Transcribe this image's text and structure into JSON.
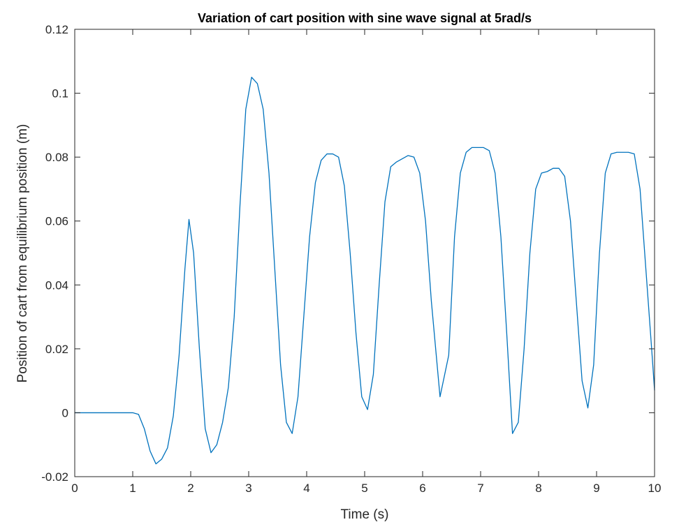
{
  "chart_data": {
    "type": "line",
    "title": "Variation of cart position with sine wave signal at 5rad/s",
    "xlabel": "Time (s)",
    "ylabel": "Position of cart from equilibrium position (m)",
    "xlim": [
      0,
      10
    ],
    "ylim": [
      -0.02,
      0.12
    ],
    "xticks": [
      0,
      1,
      2,
      3,
      4,
      5,
      6,
      7,
      8,
      9,
      10
    ],
    "yticks": [
      -0.02,
      0,
      0.02,
      0.04,
      0.06,
      0.08,
      0.1,
      0.12
    ],
    "xtick_labels": [
      "0",
      "1",
      "2",
      "3",
      "4",
      "5",
      "6",
      "7",
      "8",
      "9",
      "10"
    ],
    "ytick_labels": [
      "-0.02",
      "0",
      "0.02",
      "0.04",
      "0.06",
      "0.08",
      "0.1",
      "0.12"
    ],
    "grid": false,
    "box": true,
    "series": [
      {
        "color": "#0072bd",
        "x": [
          0,
          1.0,
          1.1,
          1.2,
          1.3,
          1.4,
          1.5,
          1.6,
          1.7,
          1.8,
          1.9,
          1.97,
          2.05,
          2.15,
          2.25,
          2.35,
          2.45,
          2.55,
          2.65,
          2.75,
          2.85,
          2.95,
          3.05,
          3.15,
          3.25,
          3.35,
          3.45,
          3.55,
          3.65,
          3.75,
          3.85,
          3.95,
          4.05,
          4.15,
          4.25,
          4.35,
          4.45,
          4.55,
          4.65,
          4.75,
          4.85,
          4.95,
          5.05,
          5.15,
          5.25,
          5.35,
          5.45,
          5.55,
          5.65,
          5.75,
          5.85,
          5.95,
          6.05,
          6.15,
          6.3,
          6.45,
          6.55,
          6.65,
          6.75,
          6.85,
          6.95,
          7.05,
          7.15,
          7.25,
          7.35,
          7.45,
          7.55,
          7.65,
          7.75,
          7.85,
          7.95,
          8.05,
          8.15,
          8.25,
          8.35,
          8.45,
          8.55,
          8.65,
          8.75,
          8.85,
          8.95,
          9.05,
          9.15,
          9.25,
          9.35,
          9.45,
          9.55,
          9.65,
          9.75,
          9.85,
          9.95,
          10.0
        ],
        "y": [
          0,
          0,
          -0.0005,
          -0.005,
          -0.012,
          -0.016,
          -0.0145,
          -0.011,
          -0.001,
          0.018,
          0.045,
          0.0605,
          0.05,
          0.02,
          -0.005,
          -0.0125,
          -0.01,
          -0.003,
          0.008,
          0.03,
          0.065,
          0.095,
          0.105,
          0.103,
          0.095,
          0.075,
          0.045,
          0.015,
          -0.003,
          -0.0065,
          0.005,
          0.03,
          0.055,
          0.072,
          0.079,
          0.081,
          0.081,
          0.08,
          0.071,
          0.05,
          0.025,
          0.005,
          0.001,
          0.012,
          0.04,
          0.066,
          0.077,
          0.0785,
          0.0795,
          0.0805,
          0.08,
          0.075,
          0.06,
          0.035,
          0.005,
          0.018,
          0.055,
          0.075,
          0.0815,
          0.083,
          0.083,
          0.083,
          0.082,
          0.075,
          0.055,
          0.025,
          -0.0065,
          -0.003,
          0.02,
          0.05,
          0.07,
          0.075,
          0.0755,
          0.0765,
          0.0765,
          0.074,
          0.06,
          0.035,
          0.01,
          0.0015,
          0.015,
          0.05,
          0.075,
          0.081,
          0.0815,
          0.0815,
          0.0815,
          0.081,
          0.07,
          0.045,
          0.02,
          0.007
        ]
      }
    ]
  }
}
